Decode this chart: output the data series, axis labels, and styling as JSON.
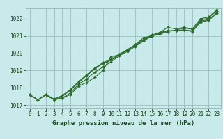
{
  "xlabel": "Graphe pression niveau de la mer (hPa)",
  "x": [
    0,
    1,
    2,
    3,
    4,
    5,
    6,
    7,
    8,
    9,
    10,
    11,
    12,
    13,
    14,
    15,
    16,
    17,
    18,
    19,
    20,
    21,
    22,
    23
  ],
  "series": [
    [
      1017.6,
      1017.3,
      1017.6,
      1017.3,
      1017.4,
      1017.6,
      1018.1,
      1018.3,
      1018.6,
      1019.0,
      1019.8,
      1019.9,
      1020.2,
      1020.5,
      1020.9,
      1021.0,
      1021.2,
      1021.5,
      1021.4,
      1021.5,
      1021.4,
      1022.0,
      1022.1,
      1022.5
    ],
    [
      1017.6,
      1017.3,
      1017.6,
      1017.3,
      1017.4,
      1017.7,
      1018.2,
      1018.5,
      1018.9,
      1019.2,
      1019.5,
      1019.85,
      1020.1,
      1020.4,
      1020.7,
      1021.0,
      1021.1,
      1021.25,
      1021.35,
      1021.45,
      1021.4,
      1021.9,
      1022.05,
      1022.45
    ],
    [
      1017.6,
      1017.3,
      1017.6,
      1017.3,
      1017.5,
      1017.85,
      1018.3,
      1018.7,
      1019.1,
      1019.4,
      1019.6,
      1019.9,
      1020.15,
      1020.45,
      1020.75,
      1021.0,
      1021.15,
      1021.3,
      1021.3,
      1021.35,
      1021.3,
      1021.85,
      1021.95,
      1022.35
    ],
    [
      1017.6,
      1017.3,
      1017.6,
      1017.35,
      1017.55,
      1017.9,
      1018.35,
      1018.75,
      1019.15,
      1019.45,
      1019.65,
      1019.95,
      1020.2,
      1020.5,
      1020.8,
      1021.05,
      1021.2,
      1021.3,
      1021.3,
      1021.35,
      1021.25,
      1021.8,
      1021.9,
      1022.3
    ]
  ],
  "line_color": "#2d6a2d",
  "marker": "D",
  "marker_size": 2,
  "bg_color": "#c8eaea",
  "grid_color": "#9bbdbd",
  "tick_color": "#1a4a1a",
  "label_color": "#1a4a1a",
  "ylim": [
    1016.8,
    1022.6
  ],
  "yticks": [
    1017,
    1018,
    1019,
    1020,
    1021,
    1022
  ],
  "xticks": [
    0,
    1,
    2,
    3,
    4,
    5,
    6,
    7,
    8,
    9,
    10,
    11,
    12,
    13,
    14,
    15,
    16,
    17,
    18,
    19,
    20,
    21,
    22,
    23
  ],
  "xlabel_fontsize": 6.5,
  "tick_fontsize": 5.5
}
